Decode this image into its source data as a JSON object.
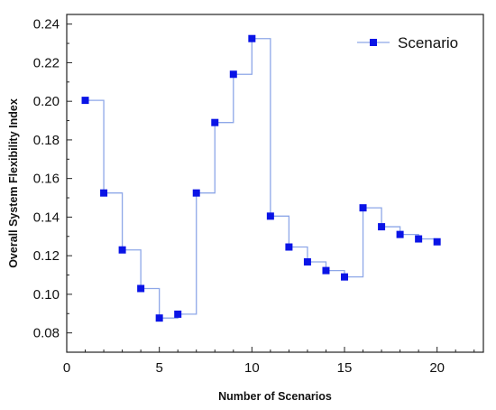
{
  "chart_data": {
    "type": "line",
    "step": "hv",
    "title": "",
    "xlabel": "Number of Scenarios",
    "ylabel": "Overall System Flexibility Index",
    "xlim": [
      0,
      22.5
    ],
    "ylim": [
      0.07,
      0.245
    ],
    "xticks": [
      0,
      5,
      10,
      15,
      20
    ],
    "xtick_labels": [
      "0",
      "5",
      "10",
      "15",
      "20"
    ],
    "yticks": [
      0.08,
      0.1,
      0.12,
      0.14,
      0.16,
      0.18,
      0.2,
      0.22,
      0.24
    ],
    "ytick_labels": [
      "0.08",
      "0.10",
      "0.12",
      "0.14",
      "0.16",
      "0.18",
      "0.20",
      "0.22",
      "0.24"
    ],
    "grid": false,
    "legend": {
      "position": "top-right"
    },
    "series": [
      {
        "name": "Scenario",
        "color": "#0a14e6",
        "line_color": "#8ea7e8",
        "marker": "square",
        "x": [
          1,
          2,
          3,
          4,
          5,
          6,
          7,
          8,
          9,
          10,
          11,
          12,
          13,
          14,
          15,
          16,
          17,
          18,
          19,
          20
        ],
        "y": [
          0.2005,
          0.1525,
          0.123,
          0.103,
          0.0877,
          0.0897,
          0.1525,
          0.189,
          0.214,
          0.2325,
          0.1405,
          0.1245,
          0.1168,
          0.1123,
          0.109,
          0.1448,
          0.135,
          0.131,
          0.1287,
          0.1272
        ]
      }
    ]
  }
}
